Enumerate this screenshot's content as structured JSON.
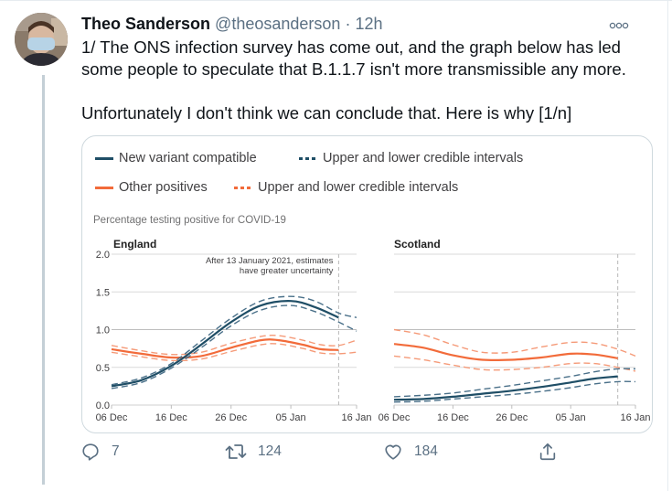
{
  "tweet": {
    "author_name": "Theo Sanderson",
    "author_handle": "@theosanderson",
    "separator": "·",
    "time": "12h",
    "more_icon": "more-horizontal-icon",
    "paragraphs": [
      "1/ The ONS infection survey has come out, and the graph below has led some people to speculate that B.1.1.7 isn't more transmissible any more.",
      "Unfortunately I don't think we can conclude that. Here is why [1/n]"
    ]
  },
  "actions": {
    "reply": {
      "icon": "reply-icon",
      "count": "7"
    },
    "retweet": {
      "icon": "retweet-icon",
      "count": "124"
    },
    "like": {
      "icon": "heart-icon",
      "count": "184"
    },
    "share": {
      "icon": "share-icon"
    }
  },
  "colors": {
    "new_variant": "#1f4e66",
    "new_variant_ci": "#4a7089",
    "other": "#f26b3a",
    "other_ci": "#f59a78",
    "grid": "#d9d9d9",
    "vline": "#b8b8b8",
    "text_secondary": "#5b7083"
  },
  "chart_data": {
    "type": "line",
    "legend": [
      {
        "label": "New variant compatible",
        "style": "solid",
        "series": "new_variant"
      },
      {
        "label": "Upper and lower credible intervals",
        "style": "dashed",
        "series": "new_variant"
      },
      {
        "label": "Other positives",
        "style": "solid",
        "series": "other"
      },
      {
        "label": "Upper and lower credible intervals",
        "style": "dashed",
        "series": "other"
      }
    ],
    "title": "Percentage testing positive for COVID-19",
    "ylim": [
      0,
      2.0
    ],
    "yticks": [
      "0.0",
      "0.5",
      "1.0",
      "1.5",
      "2.0"
    ],
    "ytick_values": [
      0,
      0.5,
      1.0,
      1.5,
      2.0
    ],
    "xticks": [
      "06 Dec",
      "16 Dec",
      "26 Dec",
      "05 Jan",
      "16 Jan"
    ],
    "xtick_days": [
      0,
      10,
      20,
      30,
      41
    ],
    "x_unit": "days since 06 Dec 2020",
    "xlim": [
      0,
      41
    ],
    "uncertainty_day": 38,
    "panels": [
      {
        "name": "England",
        "annotation": [
          "After 13 January 2021, estimates",
          "have greater uncertainty"
        ],
        "series": {
          "new_variant": {
            "x": [
              0,
              5,
              10,
              15,
              20,
              25,
              30,
              34,
              38
            ],
            "y": [
              0.25,
              0.33,
              0.52,
              0.8,
              1.1,
              1.32,
              1.38,
              1.3,
              1.16
            ]
          },
          "new_variant_upper": {
            "x": [
              0,
              5,
              10,
              15,
              20,
              25,
              30,
              34,
              38,
              41
            ],
            "y": [
              0.27,
              0.36,
              0.55,
              0.85,
              1.15,
              1.38,
              1.44,
              1.38,
              1.22,
              1.16
            ]
          },
          "new_variant_lower": {
            "x": [
              0,
              5,
              10,
              15,
              20,
              25,
              30,
              34,
              38,
              41
            ],
            "y": [
              0.22,
              0.3,
              0.49,
              0.76,
              1.05,
              1.26,
              1.32,
              1.24,
              1.1,
              0.98
            ]
          },
          "other": {
            "x": [
              0,
              5,
              10,
              15,
              20,
              25,
              28,
              32,
              35,
              38
            ],
            "y": [
              0.74,
              0.68,
              0.63,
              0.65,
              0.76,
              0.86,
              0.86,
              0.8,
              0.74,
              0.73
            ]
          },
          "other_upper": {
            "x": [
              0,
              5,
              10,
              15,
              20,
              25,
              28,
              32,
              35,
              38,
              41
            ],
            "y": [
              0.79,
              0.72,
              0.67,
              0.7,
              0.82,
              0.91,
              0.92,
              0.86,
              0.8,
              0.79,
              0.86
            ]
          },
          "other_lower": {
            "x": [
              0,
              5,
              10,
              15,
              20,
              25,
              28,
              32,
              35,
              38,
              41
            ],
            "y": [
              0.7,
              0.64,
              0.59,
              0.61,
              0.71,
              0.8,
              0.81,
              0.75,
              0.69,
              0.68,
              0.7
            ]
          }
        }
      },
      {
        "name": "Scotland",
        "series": {
          "new_variant": {
            "x": [
              0,
              5,
              10,
              15,
              20,
              25,
              30,
              34,
              38
            ],
            "y": [
              0.07,
              0.08,
              0.11,
              0.15,
              0.19,
              0.24,
              0.3,
              0.35,
              0.38
            ]
          },
          "new_variant_upper": {
            "x": [
              0,
              5,
              10,
              15,
              20,
              25,
              30,
              34,
              38,
              41
            ],
            "y": [
              0.11,
              0.13,
              0.16,
              0.21,
              0.26,
              0.32,
              0.38,
              0.44,
              0.48,
              0.48
            ]
          },
          "new_variant_lower": {
            "x": [
              0,
              5,
              10,
              15,
              20,
              25,
              30,
              34,
              38,
              41
            ],
            "y": [
              0.04,
              0.05,
              0.08,
              0.11,
              0.14,
              0.18,
              0.23,
              0.28,
              0.31,
              0.31
            ]
          },
          "other": {
            "x": [
              0,
              5,
              10,
              15,
              20,
              25,
              30,
              34,
              38
            ],
            "y": [
              0.81,
              0.76,
              0.66,
              0.6,
              0.6,
              0.63,
              0.68,
              0.67,
              0.62
            ]
          },
          "other_upper": {
            "x": [
              0,
              5,
              10,
              15,
              20,
              25,
              30,
              34,
              38,
              41
            ],
            "y": [
              1.0,
              0.93,
              0.8,
              0.7,
              0.7,
              0.77,
              0.83,
              0.82,
              0.74,
              0.65
            ]
          },
          "other_lower": {
            "x": [
              0,
              5,
              10,
              15,
              20,
              25,
              30,
              34,
              38,
              41
            ],
            "y": [
              0.65,
              0.6,
              0.53,
              0.47,
              0.47,
              0.5,
              0.55,
              0.55,
              0.5,
              0.45
            ]
          }
        }
      }
    ]
  }
}
